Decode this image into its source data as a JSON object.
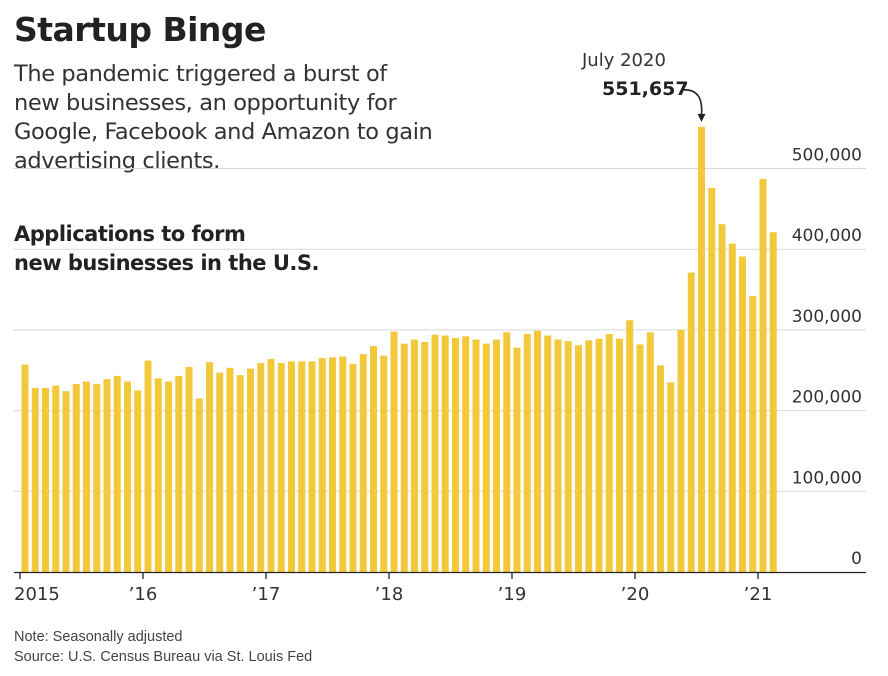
{
  "header": {
    "title": "Startup Binge",
    "subtitle": "The pandemic triggered a burst of new businesses, an opportunity for Google, Facebook and Amazon to gain advertising clients.",
    "chart_label_line1": "Applications to form",
    "chart_label_line2": "new businesses in the U.S."
  },
  "annotation": {
    "month": "July 2020",
    "value": "551,657",
    "index": 66
  },
  "footer": {
    "note": "Note: Seasonally adjusted",
    "source": "Source: U.S. Census Bureau via St. Louis Fed"
  },
  "colors": {
    "bar": "#F3C93B",
    "grid": "#d9d9d9",
    "axis": "#222222"
  },
  "chart_data": {
    "type": "bar",
    "title": "Applications to form new businesses in the U.S.",
    "xlabel": "",
    "ylabel": "",
    "ylim": [
      0,
      560000
    ],
    "grid": true,
    "y_axis_position": "right",
    "yticks": [
      0,
      100000,
      200000,
      300000,
      400000,
      500000
    ],
    "ytick_labels": [
      "0",
      "100,000",
      "200,000",
      "300,000",
      "400,000",
      "500,000"
    ],
    "xtick_labels": [
      {
        "label": "2015",
        "index": 0
      },
      {
        "label": "’16",
        "index": 12
      },
      {
        "label": "’17",
        "index": 24
      },
      {
        "label": "’18",
        "index": 36
      },
      {
        "label": "’19",
        "index": 48
      },
      {
        "label": "’20",
        "index": 60
      },
      {
        "label": "’21",
        "index": 72
      }
    ],
    "start": "2015-01",
    "end": "2021-02",
    "frequency": "monthly",
    "values": [
      257000,
      228000,
      228000,
      231000,
      224000,
      233000,
      236000,
      233000,
      239000,
      243000,
      236000,
      225000,
      262000,
      240000,
      236000,
      243000,
      254000,
      215000,
      260000,
      247000,
      253000,
      244000,
      252000,
      259000,
      264000,
      259000,
      261000,
      261000,
      261000,
      265000,
      266000,
      267000,
      258000,
      270000,
      280000,
      268000,
      298000,
      283000,
      288000,
      285000,
      294000,
      293000,
      290000,
      292000,
      288000,
      283000,
      288000,
      297000,
      278000,
      295000,
      299000,
      293000,
      288000,
      286000,
      281000,
      287000,
      289000,
      295000,
      289000,
      312000,
      282000,
      297000,
      256000,
      235000,
      300000,
      371000,
      551657,
      476000,
      431000,
      407000,
      391000,
      342000,
      487000,
      421000
    ]
  }
}
